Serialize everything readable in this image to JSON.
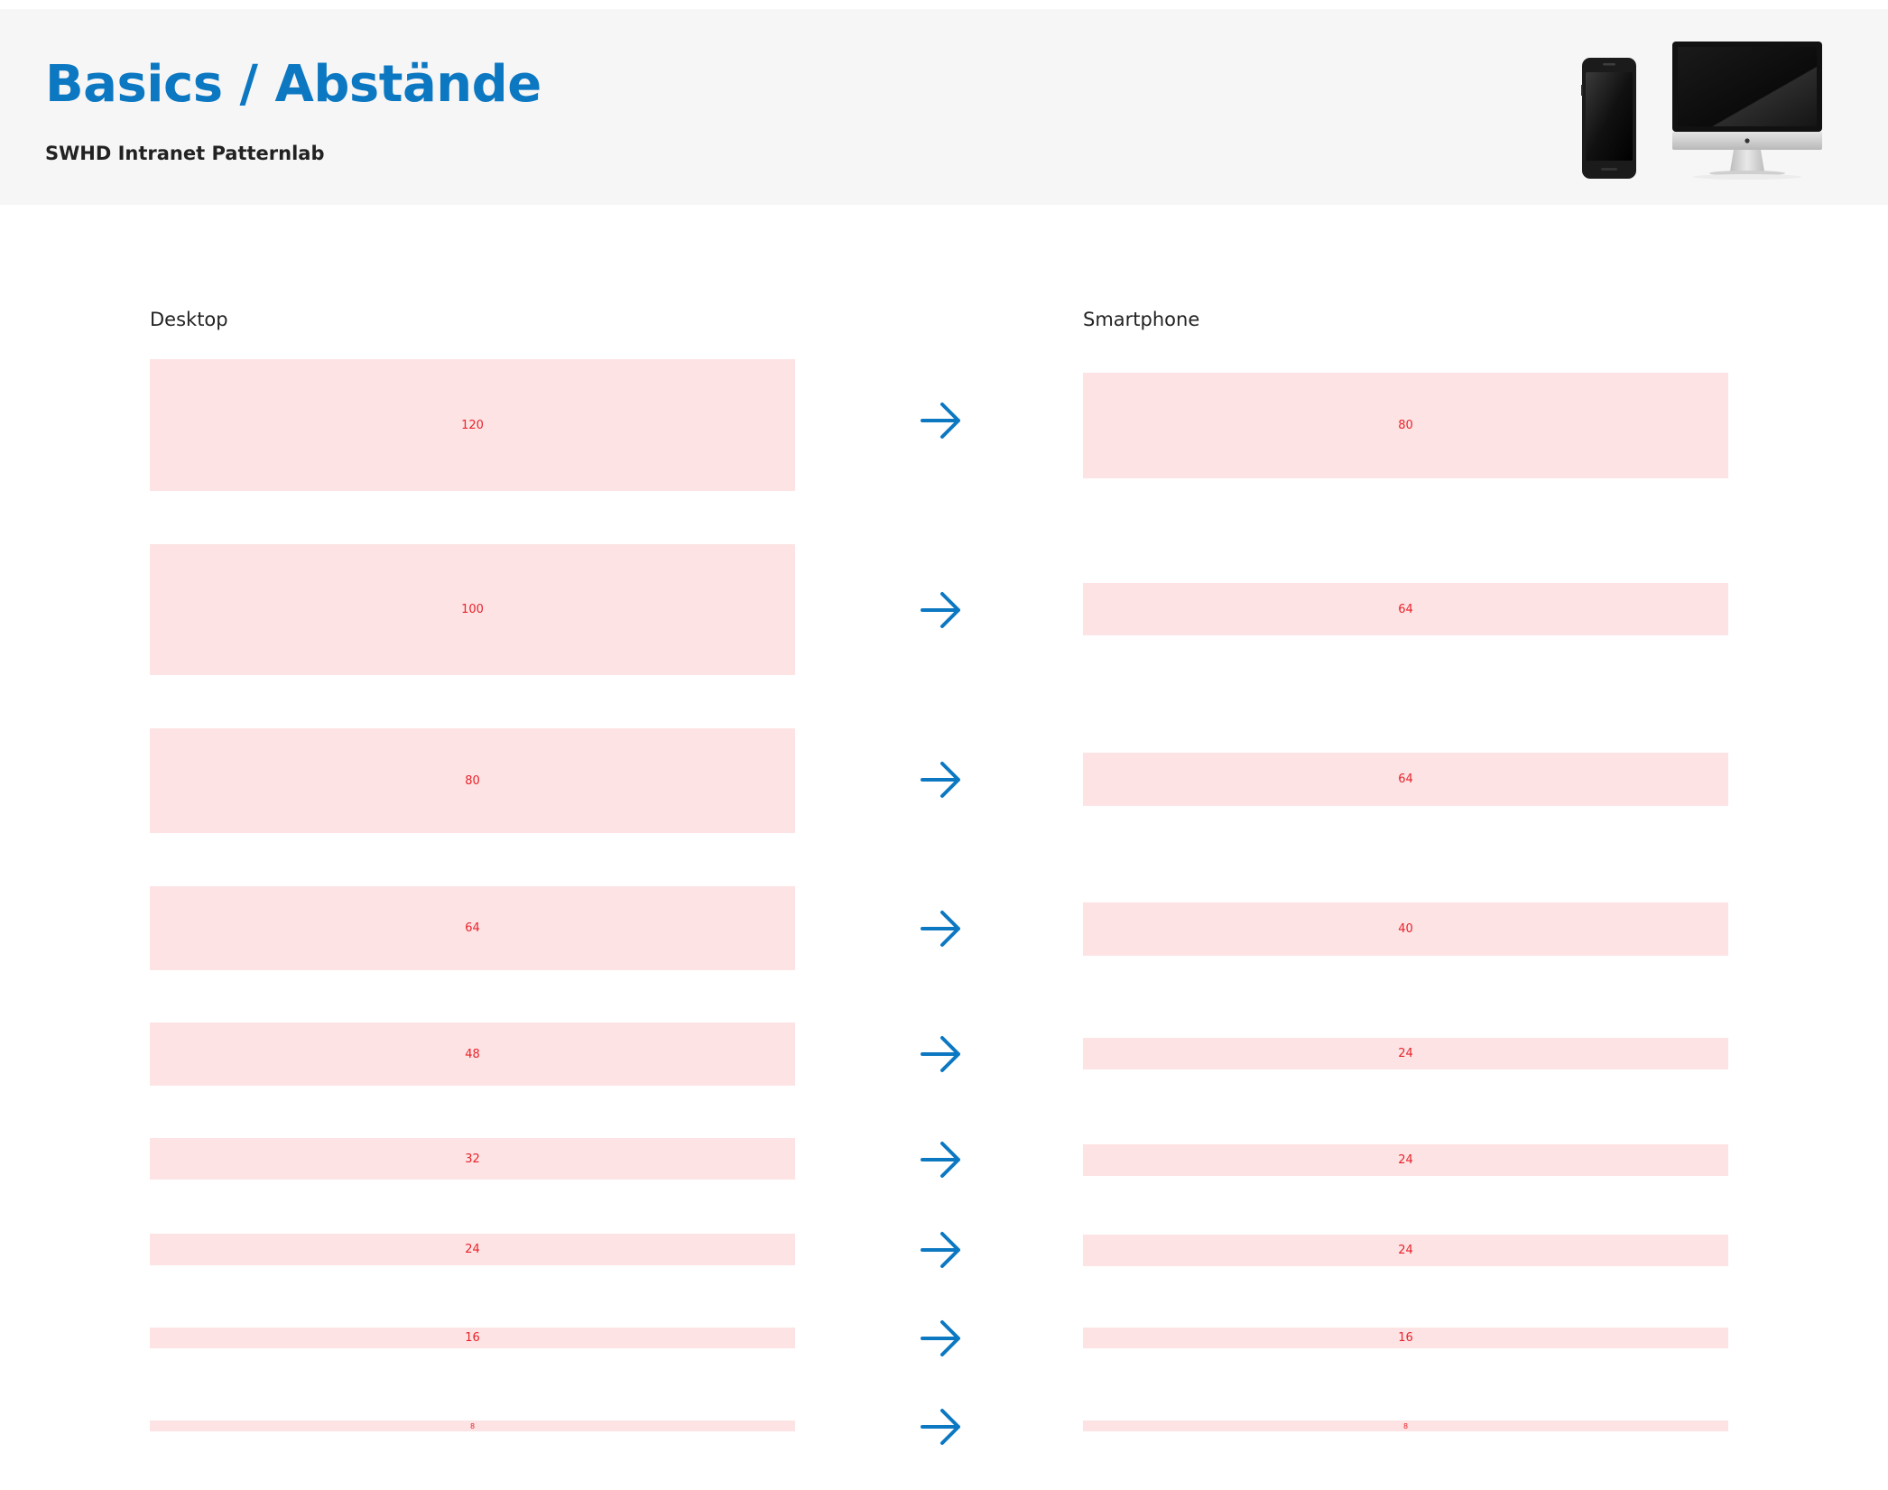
{
  "header": {
    "title": "Basics / Abstände",
    "subtitle": "SWHD Intranet Patternlab",
    "devices": [
      "smartphone-icon",
      "desktop-monitor-icon"
    ]
  },
  "columns": {
    "desktop_label": "Desktop",
    "smartphone_label": "Smartphone"
  },
  "spacing_rows": [
    {
      "desktop": "120",
      "smartphone": "80"
    },
    {
      "desktop": "100",
      "smartphone": "64"
    },
    {
      "desktop": "80",
      "smartphone": "64"
    },
    {
      "desktop": "64",
      "smartphone": "40"
    },
    {
      "desktop": "48",
      "smartphone": "24"
    },
    {
      "desktop": "32",
      "smartphone": "24"
    },
    {
      "desktop": "24",
      "smartphone": "24"
    },
    {
      "desktop": "16",
      "smartphone": "16"
    },
    {
      "desktop": "8",
      "smartphone": "8"
    }
  ],
  "colors": {
    "accent": "#0d78c2",
    "block_fill": "#fde3e4",
    "block_text": "#e8232a",
    "header_bg": "#f6f6f6"
  }
}
